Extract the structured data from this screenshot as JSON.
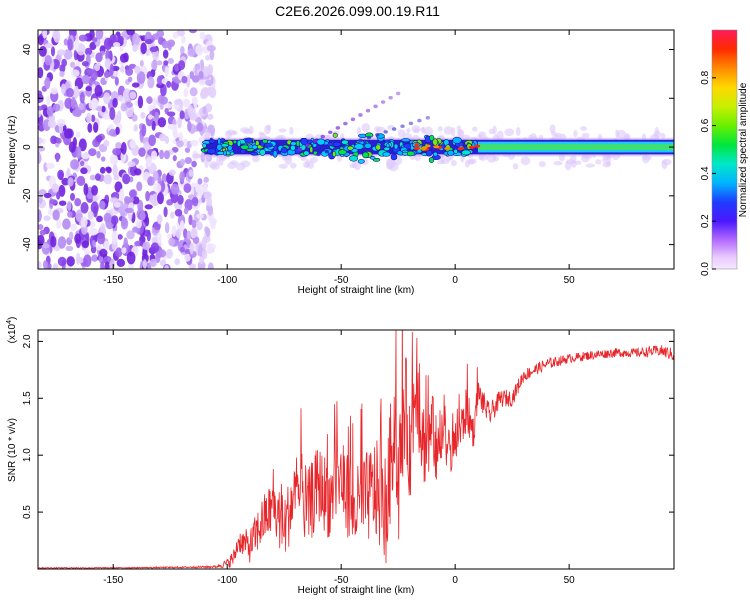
{
  "title": "C2E6.2026.099.00.19.R11",
  "colors": {
    "trace": "#e8262a",
    "scatter": "#7a2be0",
    "scatter_faint": "#c9b3f2",
    "axis": "#000000"
  },
  "chart_data": [
    {
      "type": "heatmap",
      "title": "C2E6.2026.099.00.19.R11",
      "xlabel": "Height of straight line (km)",
      "ylabel": "Frequency (Hz)",
      "xlim": [
        -183,
        96
      ],
      "ylim": [
        -50,
        48
      ],
      "x_ticks": [
        -150,
        -100,
        -50,
        0,
        50
      ],
      "y_ticks": [
        -40,
        -20,
        0,
        20,
        40
      ],
      "colorbar": {
        "label": "Normalized spectral amplitude",
        "range": [
          0,
          1
        ],
        "ticks": [
          "0.0",
          "0.2",
          "0.4",
          "0.6",
          "0.8"
        ],
        "tick_values": [
          0.0,
          0.2,
          0.4,
          0.6,
          0.8
        ]
      },
      "noise_region_x": [
        -183,
        -110
      ],
      "signal_band": {
        "x_start": -110,
        "x_end": 96,
        "center_hz": 0,
        "half_width_hz": 3
      },
      "tilted_streaks": [
        {
          "x": [
            -68,
            -25
          ],
          "y": [
            -1,
            22
          ]
        },
        {
          "x": [
            -60,
            -12
          ],
          "y": [
            -3,
            12
          ]
        }
      ]
    },
    {
      "type": "line",
      "xlabel": "Height of straight line (km)",
      "ylabel": "SNR (10 * v/v)",
      "y_multiplier_label": "(x10",
      "y_multiplier_exp": "4",
      "y_multiplier_close": ")",
      "xlim": [
        -183,
        96
      ],
      "ylim": [
        0,
        2.1
      ],
      "x_ticks": [
        -150,
        -100,
        -50,
        0,
        50
      ],
      "y_ticks": [
        "0.5",
        "1.0",
        "1.5",
        "2.0"
      ],
      "y_tick_values": [
        0.5,
        1.0,
        1.5,
        2.0
      ],
      "series": [
        {
          "name": "SNR",
          "x": [
            -183,
            -150,
            -120,
            -105,
            -100,
            -97,
            -95,
            -90,
            -85,
            -80,
            -75,
            -70,
            -65,
            -60,
            -55,
            -50,
            -45,
            -40,
            -35,
            -30,
            -27,
            -25,
            -22,
            -20,
            -17,
            -15,
            -12,
            -10,
            -8,
            -5,
            -2,
            0,
            3,
            5,
            8,
            10,
            15,
            20,
            25,
            30,
            35,
            40,
            50,
            60,
            70,
            80,
            90,
            96
          ],
          "y": [
            0.01,
            0.01,
            0.015,
            0.02,
            0.05,
            0.1,
            0.25,
            0.2,
            0.4,
            0.55,
            0.35,
            0.7,
            0.5,
            0.75,
            0.6,
            0.8,
            0.5,
            0.6,
            0.7,
            0.5,
            1.3,
            0.7,
            1.5,
            1.0,
            1.7,
            1.2,
            1.0,
            1.3,
            0.9,
            1.2,
            1.0,
            1.1,
            1.25,
            1.4,
            1.2,
            1.55,
            1.35,
            1.5,
            1.5,
            1.7,
            1.75,
            1.8,
            1.85,
            1.88,
            1.9,
            1.9,
            1.92,
            1.88
          ],
          "noise_amplitude": [
            0.004,
            0.004,
            0.006,
            0.01,
            0.04,
            0.08,
            0.1,
            0.15,
            0.22,
            0.25,
            0.3,
            0.3,
            0.35,
            0.35,
            0.35,
            0.35,
            0.35,
            0.4,
            0.45,
            0.5,
            0.55,
            0.55,
            0.5,
            0.45,
            0.45,
            0.4,
            0.35,
            0.3,
            0.25,
            0.22,
            0.2,
            0.18,
            0.2,
            0.2,
            0.15,
            0.12,
            0.1,
            0.08,
            0.07,
            0.06,
            0.05,
            0.05,
            0.04,
            0.04,
            0.04,
            0.04,
            0.05,
            0.06
          ]
        }
      ]
    }
  ]
}
